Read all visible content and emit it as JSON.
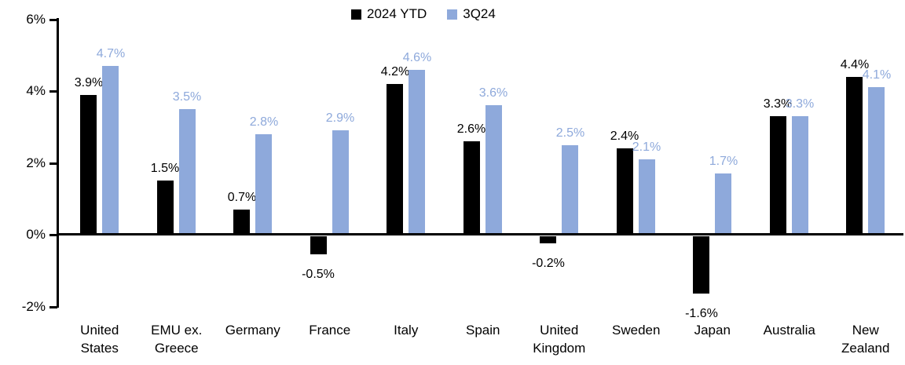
{
  "legend": {
    "items": [
      {
        "label": "2024 YTD",
        "color": "#000000"
      },
      {
        "label": "3Q24",
        "color": "#8EA9DB"
      }
    ]
  },
  "chart_data": {
    "type": "bar",
    "title": "",
    "categories": [
      "United States",
      "EMU ex. Greece",
      "Germany",
      "France",
      "Italy",
      "Spain",
      "United Kingdom",
      "Sweden",
      "Japan",
      "Australia",
      "New Zealand"
    ],
    "series": [
      {
        "name": "2024 YTD",
        "color": "#000000",
        "label_color": "#000000",
        "values": [
          3.9,
          1.5,
          0.7,
          -0.5,
          4.2,
          2.6,
          -0.2,
          2.4,
          -1.6,
          3.3,
          4.4
        ]
      },
      {
        "name": "3Q24",
        "color": "#8EA9DB",
        "label_color": "#8EA9DB",
        "values": [
          4.7,
          3.5,
          2.8,
          2.9,
          4.6,
          3.6,
          2.5,
          2.1,
          1.7,
          3.3,
          4.1
        ]
      }
    ],
    "data_labels": {
      "series_2024_ytd": [
        "3.9%",
        "1.5%",
        "0.7%",
        "-0.5%",
        "4.2%",
        "2.6%",
        "-0.2%",
        "2.4%",
        "-1.6%",
        "3.3%",
        "4.4%"
      ],
      "series_3q24": [
        "4.7%",
        "3.5%",
        "2.8%",
        "2.9%",
        "4.6%",
        "3.6%",
        "2.5%",
        "2.1%",
        "1.7%",
        "3.3%",
        "4.1%"
      ]
    },
    "ylabel": "",
    "xlabel": "",
    "y_axis": {
      "tick_labels": [
        "6%",
        "4%",
        "2%",
        "0%",
        "-2%"
      ],
      "tick_values": [
        6,
        4,
        2,
        0,
        -2
      ],
      "min": -2,
      "max": 6,
      "unit": "%"
    },
    "grid": false,
    "legend_position": "top-center"
  }
}
